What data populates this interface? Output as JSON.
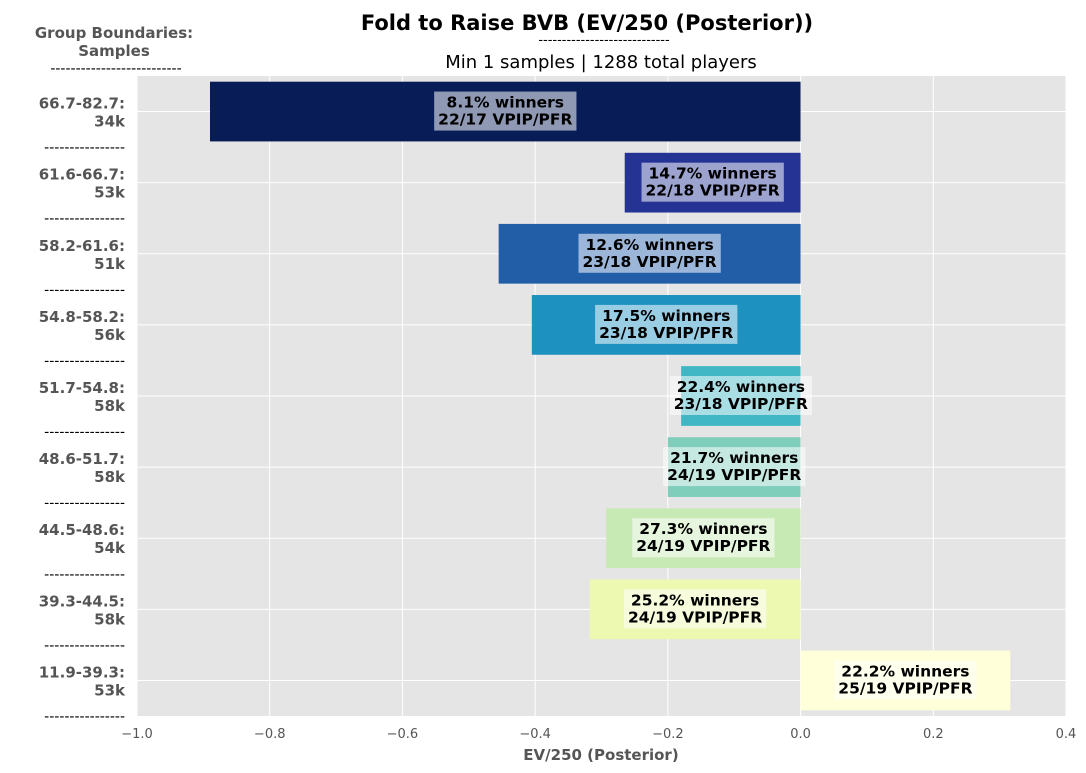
{
  "chart_data": {
    "type": "bar",
    "orientation": "horizontal",
    "title": "Fold to Raise BVB (EV/250 (Posterior))",
    "title_underline": "----------------------------",
    "subtitle": "Min 1 samples | 1288 total players",
    "side_header": [
      "Group Boundaries:",
      "Samples"
    ],
    "side_header_underline": "--------------------------",
    "separator": "----------------",
    "xlabel": "EV/250 (Posterior)",
    "xlim": [
      -1.0,
      0.4
    ],
    "xticks": [
      "−1.0",
      "−0.8",
      "−0.6",
      "−0.4",
      "−0.2",
      "0.0",
      "0.2",
      "0.4"
    ],
    "xtick_values": [
      -1.0,
      -0.8,
      -0.6,
      -0.4,
      -0.2,
      0.0,
      0.2,
      0.4
    ],
    "grid": true,
    "categories": [
      "66.7-82.7:",
      "61.6-66.7:",
      "58.2-61.6:",
      "54.8-58.2:",
      "51.7-54.8:",
      "48.6-51.7:",
      "44.5-48.6:",
      "39.3-44.5:",
      "11.9-39.3:"
    ],
    "samples": [
      "34k",
      "53k",
      "51k",
      "56k",
      "58k",
      "58k",
      "54k",
      "58k",
      "53k"
    ],
    "values": [
      -0.89,
      -0.265,
      -0.455,
      -0.405,
      -0.18,
      -0.2,
      -0.293,
      -0.318,
      0.316
    ],
    "bar_labels": [
      [
        "8.1% winners",
        "22/17 VPIP/PFR"
      ],
      [
        "14.7% winners",
        "22/18 VPIP/PFR"
      ],
      [
        "12.6% winners",
        "23/18 VPIP/PFR"
      ],
      [
        "17.5% winners",
        "23/18 VPIP/PFR"
      ],
      [
        "22.4% winners",
        "23/18 VPIP/PFR"
      ],
      [
        "21.7% winners",
        "24/19 VPIP/PFR"
      ],
      [
        "27.3% winners",
        "24/19 VPIP/PFR"
      ],
      [
        "25.2% winners",
        "24/19 VPIP/PFR"
      ],
      [
        "22.2% winners",
        "25/19 VPIP/PFR"
      ]
    ],
    "colors": [
      "#081d58",
      "#253494",
      "#225ea8",
      "#1d91c0",
      "#41b6c4",
      "#7fcdbb",
      "#c7e9b4",
      "#edf8b1",
      "#ffffd9"
    ],
    "plot_background": "#e5e5e5",
    "grid_color": "#ffffff"
  }
}
